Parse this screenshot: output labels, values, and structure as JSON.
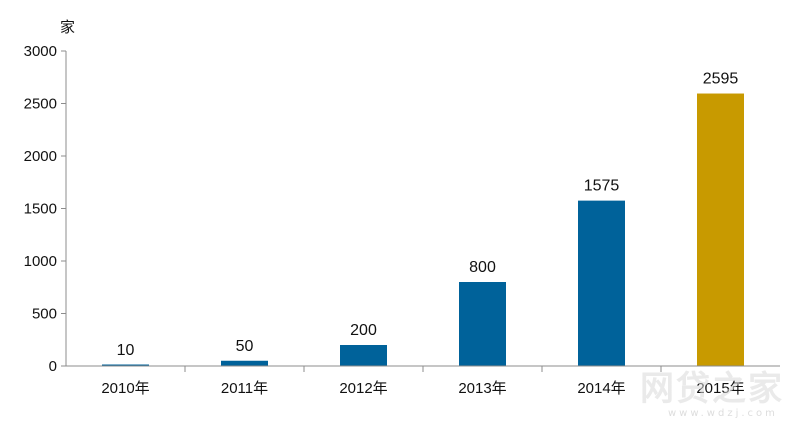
{
  "chart_data": {
    "type": "bar",
    "categories": [
      "2010年",
      "2011年",
      "2012年",
      "2013年",
      "2014年",
      "2015年"
    ],
    "values": [
      10,
      50,
      200,
      800,
      1575,
      2595
    ],
    "data_labels": [
      "10",
      "50",
      "200",
      "800",
      "1575",
      "2595"
    ],
    "ylabel": "家",
    "ylim": [
      0,
      3000
    ],
    "yticks": [
      0,
      500,
      1000,
      1500,
      2000,
      2500,
      3000
    ],
    "ytick_labels": [
      "0",
      "500",
      "1000",
      "1500",
      "2000",
      "2500",
      "3000"
    ],
    "grid": false,
    "legend": "none",
    "colors": {
      "default_bar": "#00629a",
      "highlight_bar": "#c89a00",
      "axis": "#8c8c8c"
    },
    "highlight_index": 5
  },
  "watermark": {
    "text": "网贷之家",
    "sub": "www.wdzj.com"
  }
}
